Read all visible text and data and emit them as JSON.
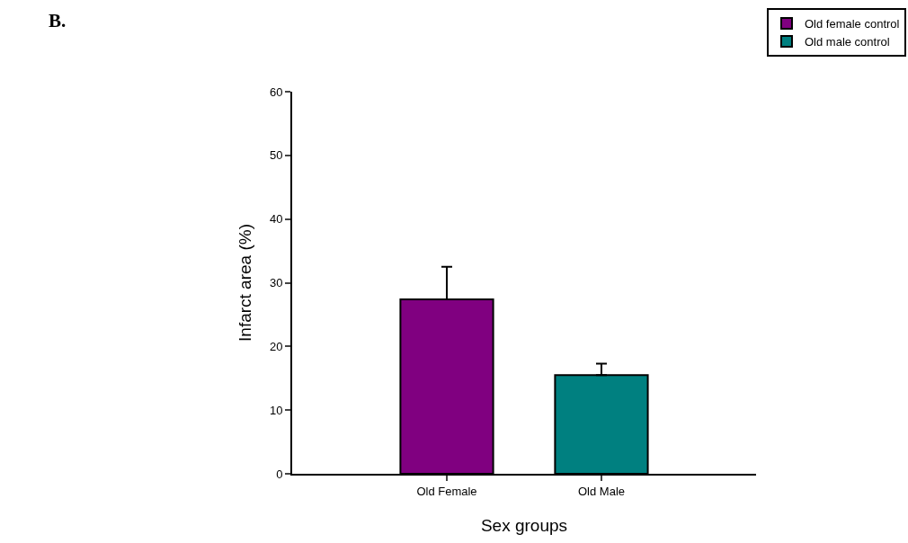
{
  "chart_data": {
    "type": "bar",
    "xlabel": "Sex groups",
    "ylabel": "Infarct area (%)",
    "annotations": [
      "B."
    ],
    "categories": [
      "Old Female",
      "Old Male"
    ],
    "series": [
      {
        "name": "Old female control",
        "color": "#800080",
        "values": [
          27.4,
          null
        ],
        "errors": [
          [
            27.4,
            32.5
          ],
          null
        ]
      },
      {
        "name": "Old male control",
        "color": "#008080",
        "values": [
          null,
          15.5
        ],
        "errors": [
          null,
          [
            15.5,
            17.3
          ]
        ]
      }
    ],
    "ylim": [
      0,
      60
    ],
    "yticks": [
      0,
      10,
      20,
      30,
      40,
      50,
      60
    ],
    "legend": "top right"
  }
}
